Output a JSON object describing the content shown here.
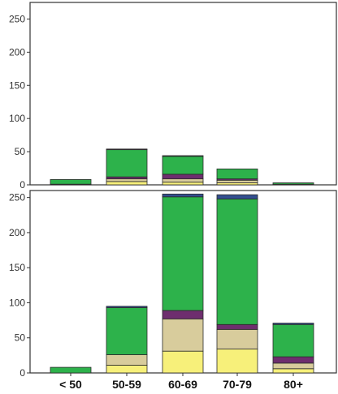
{
  "chart_data": [
    {
      "type": "bar",
      "stacked": true,
      "categories": [
        "< 50",
        "50-59",
        "60-69",
        "70-79",
        "80+"
      ],
      "ylim": [
        0,
        275
      ],
      "yticks": [
        0,
        50,
        100,
        150,
        200,
        250
      ],
      "grid": false,
      "series": [
        {
          "color": "#f7f07a",
          "values": [
            0,
            5,
            4,
            3,
            1
          ]
        },
        {
          "color": "#d8cc9c",
          "values": [
            0,
            4,
            5,
            4,
            0
          ]
        },
        {
          "color": "#6e2e6e",
          "values": [
            1,
            3,
            7,
            2,
            0
          ]
        },
        {
          "color": "#2db24b",
          "values": [
            7,
            41,
            27,
            15,
            2
          ]
        },
        {
          "color": "#334f8f",
          "values": [
            0,
            1,
            1,
            0,
            0
          ]
        }
      ]
    },
    {
      "type": "bar",
      "stacked": true,
      "categories": [
        "< 50",
        "50-59",
        "60-69",
        "70-79",
        "80+"
      ],
      "ylim": [
        0,
        260
      ],
      "yticks": [
        0,
        50,
        100,
        150,
        200,
        250
      ],
      "grid": false,
      "series": [
        {
          "color": "#f7f07a",
          "values": [
            0,
            11,
            31,
            34,
            6
          ]
        },
        {
          "color": "#d8cc9c",
          "values": [
            0,
            15,
            46,
            28,
            8
          ]
        },
        {
          "color": "#6e2e6e",
          "values": [
            0,
            0,
            12,
            7,
            9
          ]
        },
        {
          "color": "#2db24b",
          "values": [
            8,
            67,
            162,
            179,
            46
          ]
        },
        {
          "color": "#334f8f",
          "values": [
            0,
            2,
            4,
            6,
            2
          ]
        }
      ]
    }
  ],
  "colors": {
    "axis": "#333333",
    "background": "#ffffff",
    "bar_outline": "#2a2a2a"
  }
}
